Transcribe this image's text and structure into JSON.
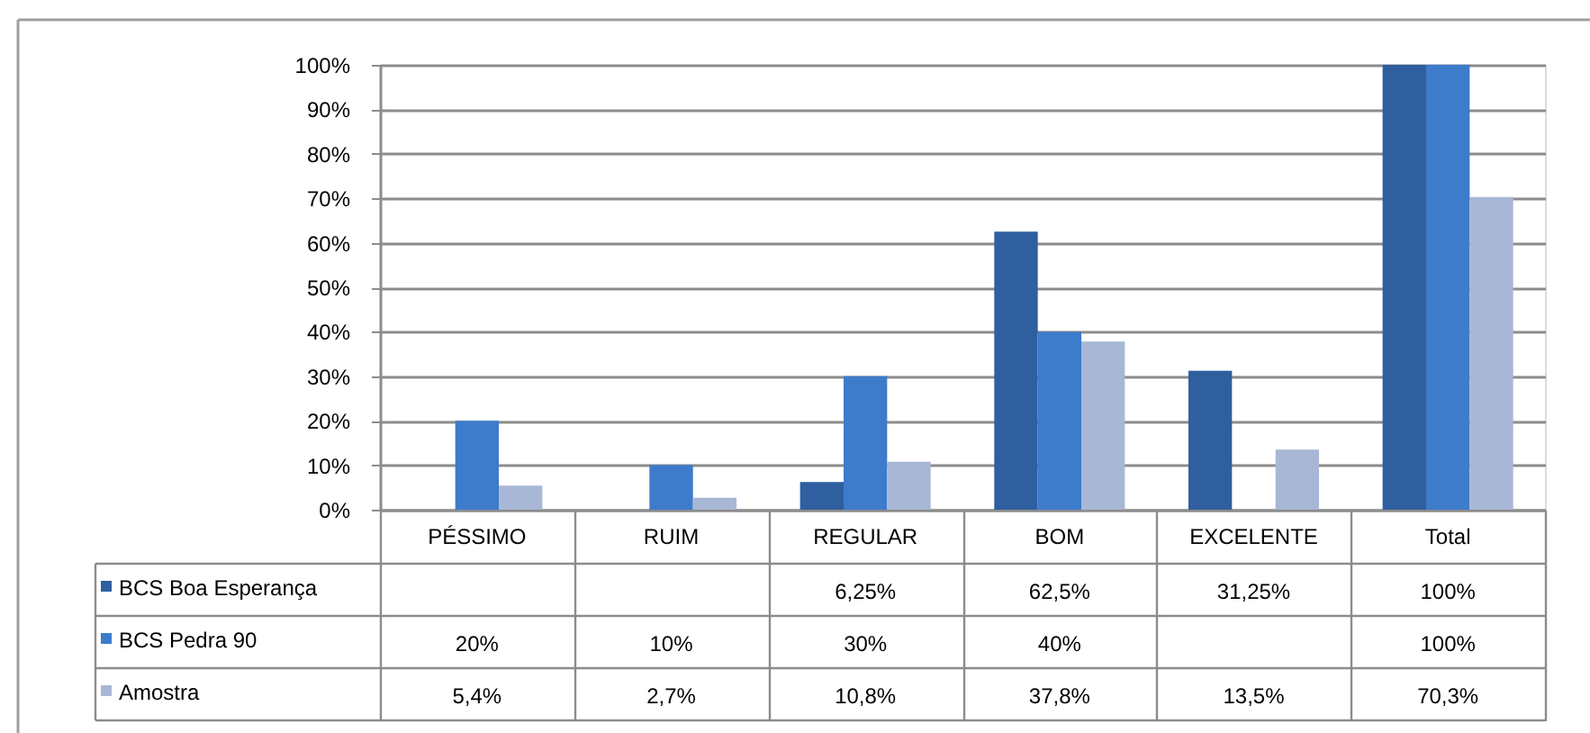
{
  "chart_data": {
    "type": "bar",
    "categories": [
      "PÉSSIMO",
      "RUIM",
      "REGULAR",
      "BOM",
      "EXCELENTE",
      "Total"
    ],
    "series": [
      {
        "name": "BCS Boa Esperança",
        "color": "#2f5f9f",
        "values": [
          null,
          null,
          6.25,
          62.5,
          31.25,
          100
        ],
        "value_labels": [
          null,
          null,
          "6,25%",
          "62,5%",
          "31,25%",
          "100%"
        ]
      },
      {
        "name": "BCS Pedra 90",
        "color": "#3d7bcb",
        "values": [
          20,
          10,
          30,
          40,
          null,
          100
        ],
        "value_labels": [
          "20%",
          "10%",
          "30%",
          "40%",
          null,
          "100%"
        ]
      },
      {
        "name": "Amostra",
        "color": "#a9b7d6",
        "values": [
          5.4,
          2.7,
          10.8,
          37.8,
          13.5,
          70.3
        ],
        "value_labels": [
          "5,4%",
          "2,7%",
          "10,8%",
          "37,8%",
          "13,5%",
          "70,3%"
        ]
      }
    ],
    "ylim": [
      0,
      100
    ],
    "yticks": [
      {
        "value": 0,
        "label": "0%"
      },
      {
        "value": 10,
        "label": "10%"
      },
      {
        "value": 20,
        "label": "20%"
      },
      {
        "value": 30,
        "label": "30%"
      },
      {
        "value": 40,
        "label": "40%"
      },
      {
        "value": 50,
        "label": "50%"
      },
      {
        "value": 60,
        "label": "60%"
      },
      {
        "value": 70,
        "label": "70%"
      },
      {
        "value": 80,
        "label": "80%"
      },
      {
        "value": 90,
        "label": "90%"
      },
      {
        "value": 100,
        "label": "100%"
      }
    ],
    "grid": "y",
    "legend": "bottom left"
  }
}
